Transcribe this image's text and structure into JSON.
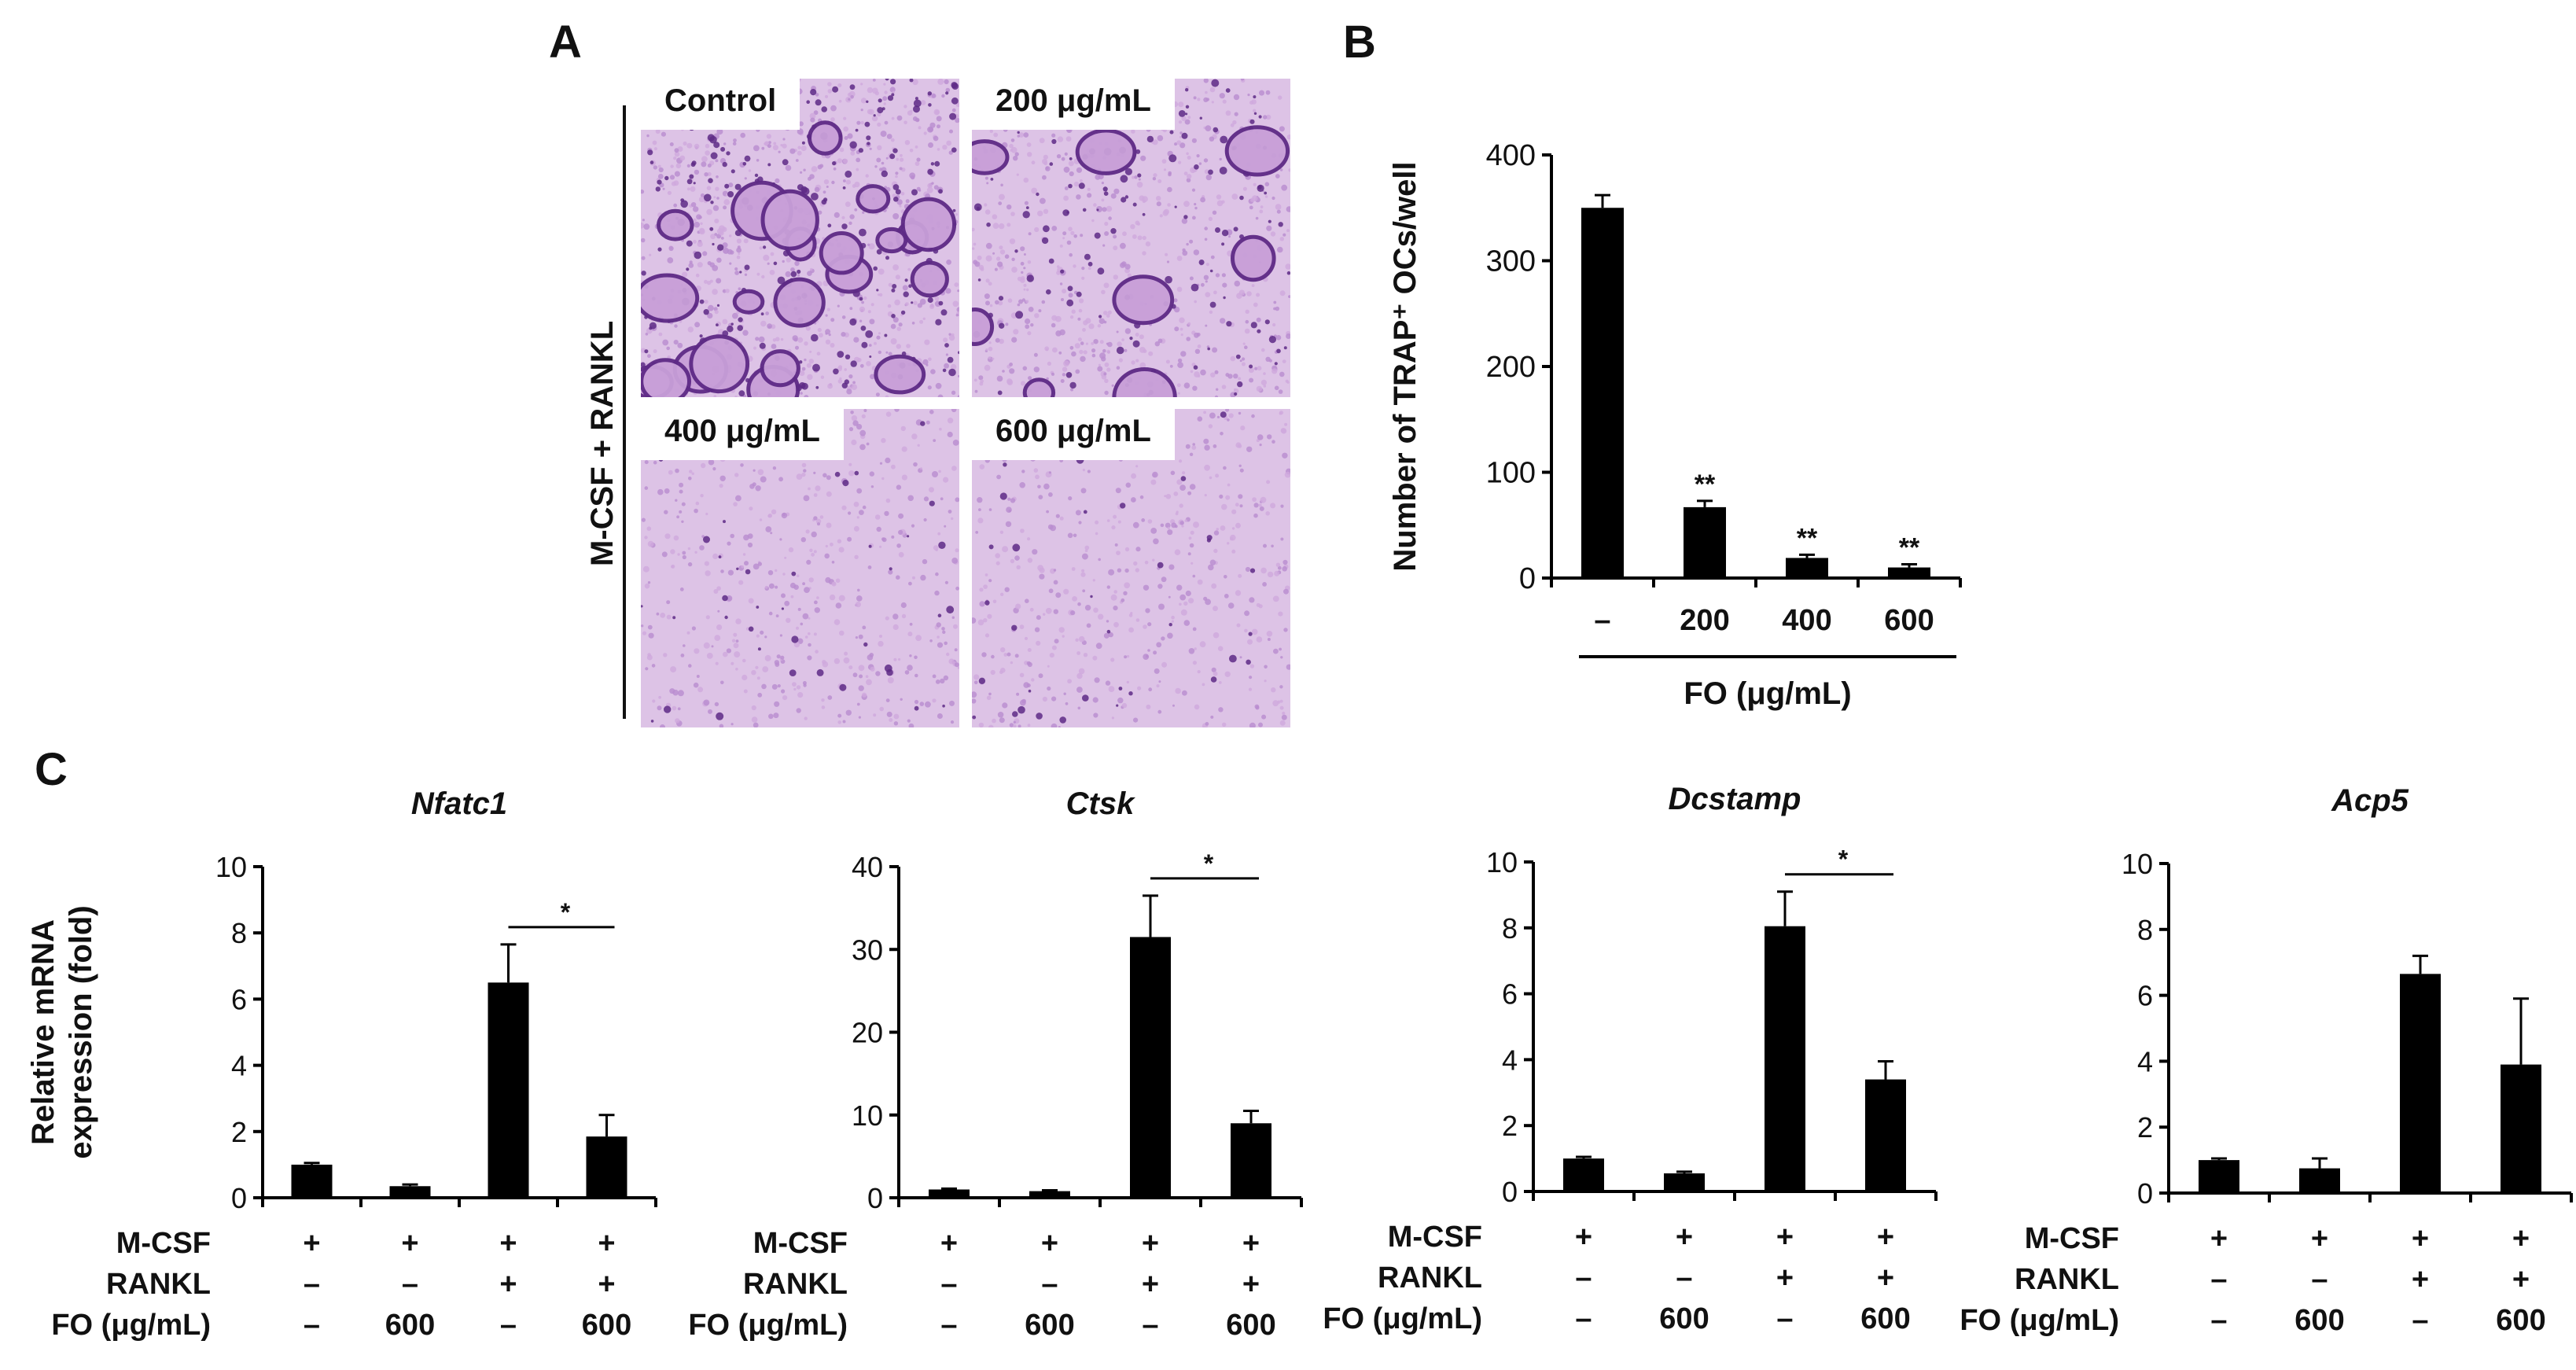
{
  "panels": {
    "a_letter": "A",
    "b_letter": "B",
    "c_letter": "C"
  },
  "micrographs": {
    "side_label": "M-CSF + RANKL",
    "tiles": [
      {
        "label": "Control",
        "density": "high"
      },
      {
        "label": "200 μg/mL",
        "density": "medium"
      },
      {
        "label": "400 μg/mL",
        "density": "low"
      },
      {
        "label": "600 μg/mL",
        "density": "low"
      }
    ],
    "colors": {
      "background": "#ddc3e6",
      "stain": "#5e2a86",
      "cell": "#c89fd8"
    }
  },
  "chart_data": [
    {
      "type": "bar",
      "ylabel": "Number of TRAP⁺ OCs/well",
      "ylim": [
        0,
        400
      ],
      "yticks": [
        0,
        100,
        200,
        300,
        400
      ],
      "categories": [
        "–",
        "200",
        "400",
        "600"
      ],
      "values": [
        350,
        67,
        19,
        10
      ],
      "errors": [
        12,
        6,
        3,
        3
      ],
      "significance": [
        "",
        "**",
        "**",
        "**"
      ],
      "xgroup_label": "FO (μg/mL)",
      "bar_color": "#000000"
    },
    {
      "type": "bar",
      "title": "Nfatc1",
      "ylabel": "Relative mRNA expression (fold)",
      "ylim": [
        0,
        10
      ],
      "yticks": [
        0,
        2,
        4,
        6,
        8,
        10
      ],
      "values": [
        1.0,
        0.35,
        6.5,
        1.85
      ],
      "errors": [
        0.05,
        0.05,
        1.15,
        0.65
      ],
      "sig_bracket": {
        "from": 2,
        "to": 3,
        "label": "*"
      },
      "conditions": [
        {
          "label": "M-CSF",
          "values": [
            "+",
            "+",
            "+",
            "+"
          ]
        },
        {
          "label": "RANKL",
          "values": [
            "–",
            "–",
            "+",
            "+"
          ]
        },
        {
          "label": "FO (μg/mL)",
          "values": [
            "–",
            "600",
            "–",
            "600"
          ]
        }
      ]
    },
    {
      "type": "bar",
      "title": "Ctsk",
      "ylabel": "",
      "ylim": [
        0,
        40
      ],
      "yticks": [
        0,
        10,
        20,
        30,
        40
      ],
      "values": [
        1.0,
        0.8,
        31.5,
        9.0
      ],
      "errors": [
        0.1,
        0.1,
        5.0,
        1.5
      ],
      "sig_bracket": {
        "from": 2,
        "to": 3,
        "label": "*"
      },
      "conditions": [
        {
          "label": "M-CSF",
          "values": [
            "+",
            "+",
            "+",
            "+"
          ]
        },
        {
          "label": "RANKL",
          "values": [
            "–",
            "–",
            "+",
            "+"
          ]
        },
        {
          "label": "FO (μg/mL)",
          "values": [
            "–",
            "600",
            "–",
            "600"
          ]
        }
      ]
    },
    {
      "type": "bar",
      "title": "Dcstamp",
      "ylabel": "",
      "ylim": [
        0,
        10
      ],
      "yticks": [
        0,
        2,
        4,
        6,
        8,
        10
      ],
      "values": [
        1.0,
        0.55,
        8.05,
        3.4
      ],
      "errors": [
        0.05,
        0.05,
        1.05,
        0.55
      ],
      "sig_bracket": {
        "from": 2,
        "to": 3,
        "label": "*"
      },
      "conditions": [
        {
          "label": "M-CSF",
          "values": [
            "+",
            "+",
            "+",
            "+"
          ]
        },
        {
          "label": "RANKL",
          "values": [
            "–",
            "–",
            "+",
            "+"
          ]
        },
        {
          "label": "FO (μg/mL)",
          "values": [
            "–",
            "600",
            "–",
            "600"
          ]
        }
      ]
    },
    {
      "type": "bar",
      "title": "Acp5",
      "ylabel": "",
      "ylim": [
        0,
        10
      ],
      "yticks": [
        0,
        2,
        4,
        6,
        8,
        10
      ],
      "values": [
        1.0,
        0.75,
        6.65,
        3.9
      ],
      "errors": [
        0.05,
        0.3,
        0.55,
        2.0
      ],
      "sig_bracket": null,
      "conditions": [
        {
          "label": "M-CSF",
          "values": [
            "+",
            "+",
            "+",
            "+"
          ]
        },
        {
          "label": "RANKL",
          "values": [
            "–",
            "–",
            "+",
            "+"
          ]
        },
        {
          "label": "FO (μg/mL)",
          "values": [
            "–",
            "600",
            "–",
            "600"
          ]
        }
      ]
    }
  ]
}
